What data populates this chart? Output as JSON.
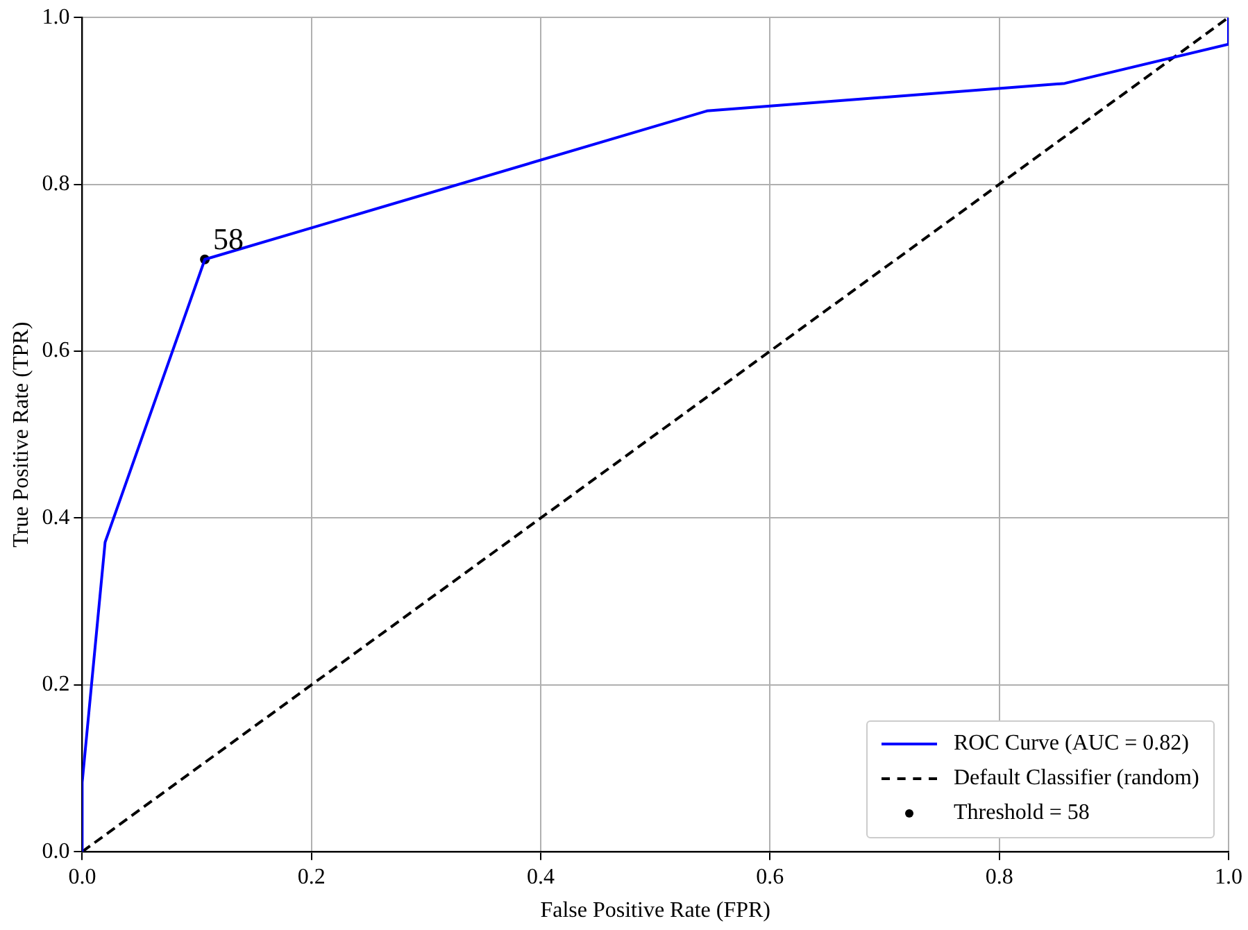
{
  "chart_data": {
    "type": "line",
    "xlabel": "False Positive Rate (FPR)",
    "ylabel": "True Positive Rate (TPR)",
    "xlim": [
      0,
      1
    ],
    "ylim": [
      0,
      1
    ],
    "xticks": [
      {
        "value": 0,
        "label": "0.0"
      },
      {
        "value": 0.2,
        "label": "0.2"
      },
      {
        "value": 0.4,
        "label": "0.4"
      },
      {
        "value": 0.6,
        "label": "0.6"
      },
      {
        "value": 0.8,
        "label": "0.8"
      },
      {
        "value": 1,
        "label": "1.0"
      }
    ],
    "yticks": [
      {
        "value": 0,
        "label": "0.0"
      },
      {
        "value": 0.2,
        "label": "0.2"
      },
      {
        "value": 0.4,
        "label": "0.4"
      },
      {
        "value": 0.6,
        "label": "0.6"
      },
      {
        "value": 0.8,
        "label": "0.8"
      },
      {
        "value": 1,
        "label": "1.0"
      }
    ],
    "grid": true,
    "legend": "bottom right",
    "series": [
      {
        "name": "ROC Curve (AUC = 0.82)",
        "color": "#0000ff",
        "line_style": "solid",
        "marker": "none",
        "x": [
          0,
          0,
          0.02,
          0.107,
          0.545,
          0.857,
          1,
          1
        ],
        "values": [
          0,
          0.083,
          0.371,
          0.71,
          0.888,
          0.921,
          0.968,
          1
        ]
      },
      {
        "name": "Default Classifier (random)",
        "color": "#000000",
        "line_style": "dashed",
        "marker": "none",
        "x": [
          0,
          1
        ],
        "values": [
          0,
          1
        ]
      },
      {
        "name": "Threshold = 58",
        "type": "scatter",
        "color": "#000000",
        "marker": "circle",
        "x": [
          0.107
        ],
        "values": [
          0.71
        ]
      }
    ],
    "annotations": [
      {
        "text": "58",
        "x": 0.107,
        "y": 0.71
      }
    ]
  }
}
